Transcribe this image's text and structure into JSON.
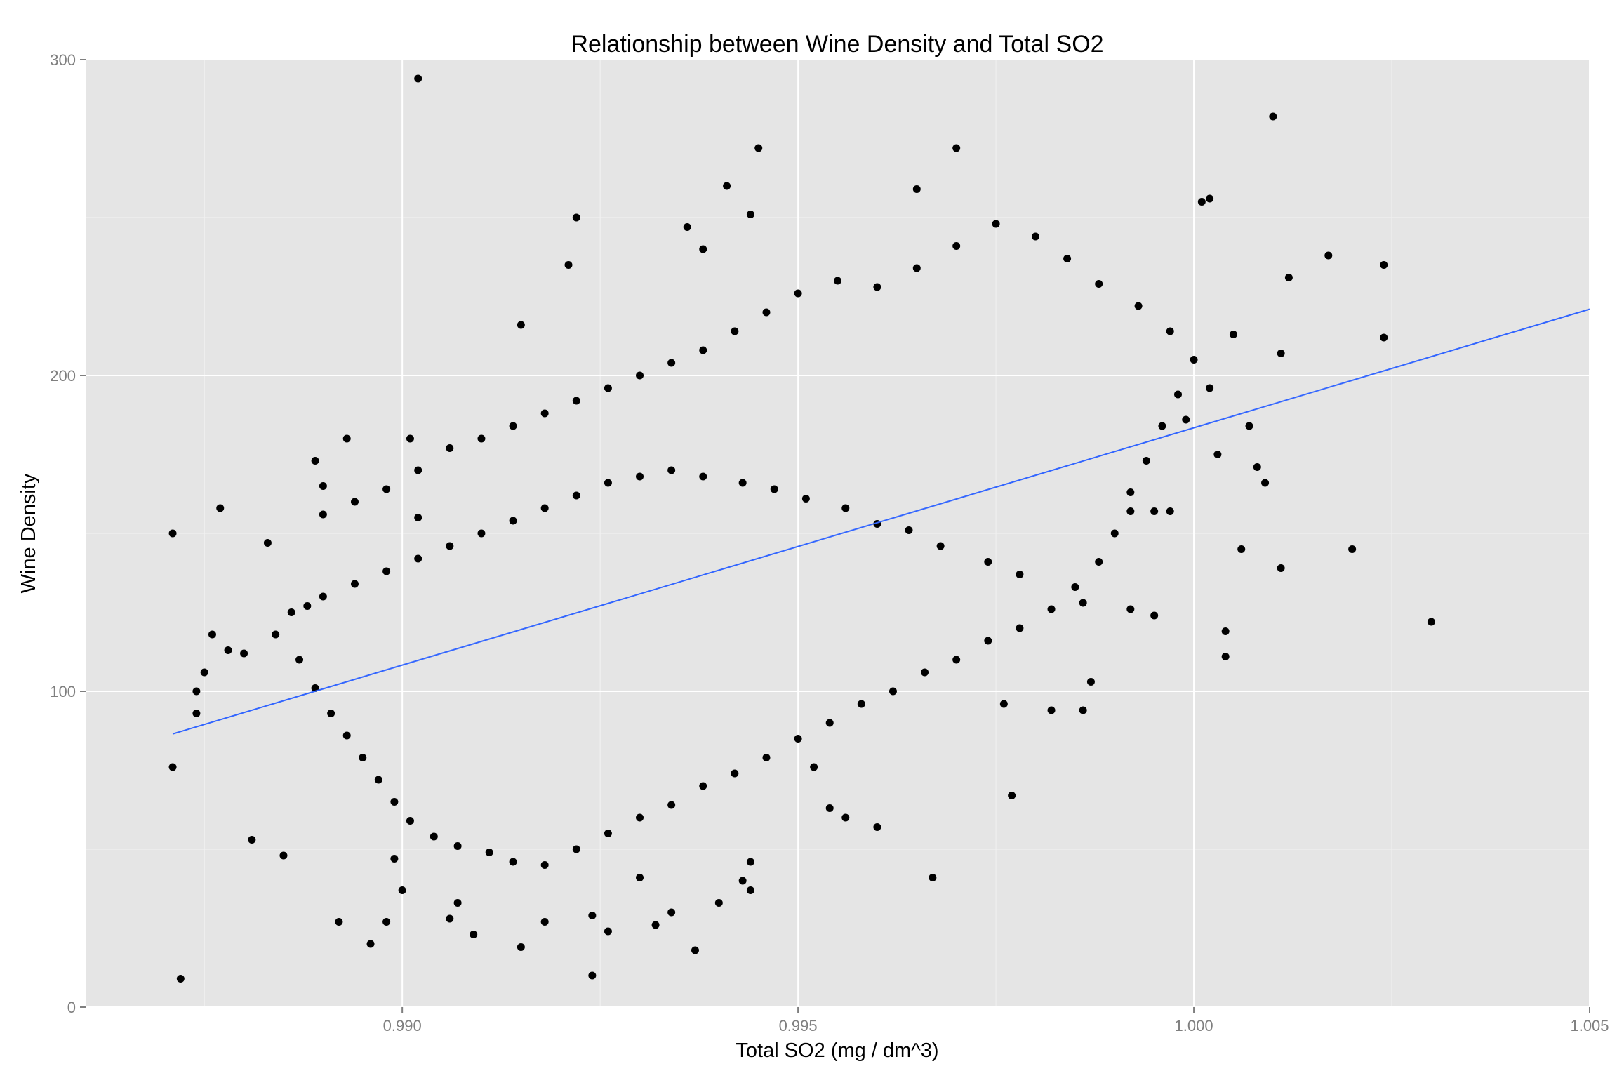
{
  "chart_data": {
    "type": "scatter",
    "title": "Relationship between Wine Density and Total SO2",
    "xlabel": "Total SO2 (mg / dm^3)",
    "ylabel": "Wine Density",
    "xlim": [
      0.986,
      1.005
    ],
    "ylim": [
      0,
      300
    ],
    "x_ticks": [
      0.99,
      0.995,
      1.0,
      1.005
    ],
    "x_tick_labels": [
      "0.990",
      "0.995",
      "1.000",
      "1.005"
    ],
    "y_ticks": [
      0,
      100,
      200,
      300
    ],
    "y_tick_labels": [
      "0",
      "100",
      "200",
      "300"
    ],
    "grid": true,
    "legend": "none",
    "point_color": "#000000",
    "trend_color": "#3366ff",
    "panel_color": "#e5e5e5",
    "trend_line": {
      "x": [
        0.9871,
        1.005
      ],
      "y": [
        86.5,
        221
      ]
    },
    "points": [
      [
        0.9902,
        294
      ],
      [
        1.001,
        282
      ],
      [
        0.9945,
        272
      ],
      [
        0.997,
        272
      ],
      [
        0.9941,
        260
      ],
      [
        0.9965,
        259
      ],
      [
        1.0001,
        255
      ],
      [
        1.0002,
        256
      ],
      [
        0.9922,
        250
      ],
      [
        0.9944,
        251
      ],
      [
        0.9936,
        247
      ],
      [
        0.9938,
        240
      ],
      [
        0.9921,
        235
      ],
      [
        1.0024,
        235
      ],
      [
        1.0017,
        238
      ],
      [
        1.0012,
        231
      ],
      [
        1.0024,
        212
      ],
      [
        1.0011,
        207
      ],
      [
        1.0005,
        213
      ],
      [
        0.9915,
        216
      ],
      [
        0.9871,
        150
      ],
      [
        0.9877,
        158
      ],
      [
        0.9871,
        76
      ],
      [
        0.9872,
        9
      ],
      [
        0.9874,
        93
      ],
      [
        0.9874,
        100
      ],
      [
        0.9875,
        106
      ],
      [
        0.9876,
        118
      ],
      [
        0.9878,
        113
      ],
      [
        0.988,
        112
      ],
      [
        0.9881,
        53
      ],
      [
        0.9883,
        147
      ],
      [
        0.9885,
        48
      ],
      [
        0.9889,
        173
      ],
      [
        0.9888,
        127
      ],
      [
        0.989,
        165
      ],
      [
        0.9892,
        27
      ],
      [
        0.9893,
        180
      ],
      [
        0.9896,
        20
      ],
      [
        0.9898,
        27
      ],
      [
        0.9899,
        47
      ],
      [
        0.99,
        37
      ],
      [
        0.9901,
        180
      ],
      [
        0.9902,
        155
      ],
      [
        0.9906,
        28
      ],
      [
        0.9907,
        33
      ],
      [
        0.9909,
        23
      ],
      [
        0.9915,
        19
      ],
      [
        0.9918,
        27
      ],
      [
        0.9924,
        10
      ],
      [
        0.9924,
        29
      ],
      [
        0.9926,
        24
      ],
      [
        0.993,
        41
      ],
      [
        0.9932,
        26
      ],
      [
        0.9934,
        30
      ],
      [
        0.9937,
        18
      ],
      [
        0.994,
        33
      ],
      [
        0.9943,
        40
      ],
      [
        0.9944,
        37
      ],
      [
        0.9944,
        46
      ],
      [
        0.9952,
        76
      ],
      [
        0.9954,
        63
      ],
      [
        0.9956,
        60
      ],
      [
        0.996,
        57
      ],
      [
        0.9967,
        41
      ],
      [
        0.9977,
        67
      ],
      [
        0.9987,
        103
      ],
      [
        0.9986,
        94
      ],
      [
        0.9982,
        94
      ],
      [
        0.9976,
        96
      ],
      [
        1.0004,
        111
      ],
      [
        1.0004,
        119
      ],
      [
        1.0006,
        145
      ],
      [
        1.0011,
        139
      ],
      [
        1.002,
        145
      ],
      [
        1.003,
        122
      ],
      [
        1.0009,
        166
      ],
      [
        1.0008,
        171
      ],
      [
        1.0003,
        175
      ],
      [
        1.0007,
        184
      ],
      [
        1.0002,
        196
      ],
      [
        0.9999,
        186
      ],
      [
        0.9997,
        157
      ],
      [
        0.9995,
        157
      ],
      [
        0.9992,
        157
      ],
      [
        0.9995,
        124
      ],
      [
        0.9992,
        126
      ],
      [
        0.9986,
        128
      ],
      [
        0.9978,
        137
      ],
      [
        0.9974,
        141
      ],
      [
        0.9968,
        146
      ],
      [
        0.9964,
        151
      ],
      [
        0.996,
        153
      ],
      [
        0.9956,
        158
      ],
      [
        0.9951,
        161
      ],
      [
        0.9947,
        164
      ],
      [
        0.9943,
        166
      ],
      [
        0.9938,
        168
      ],
      [
        0.9934,
        170
      ],
      [
        0.993,
        168
      ],
      [
        0.9926,
        166
      ],
      [
        0.9922,
        162
      ],
      [
        0.9918,
        158
      ],
      [
        0.9914,
        154
      ],
      [
        0.991,
        150
      ],
      [
        0.9906,
        146
      ],
      [
        0.9902,
        142
      ],
      [
        0.9898,
        138
      ],
      [
        0.9894,
        134
      ],
      [
        0.989,
        130
      ],
      [
        0.9886,
        125
      ],
      [
        0.9884,
        118
      ],
      [
        0.9887,
        110
      ],
      [
        0.9889,
        101
      ],
      [
        0.9891,
        93
      ],
      [
        0.9893,
        86
      ],
      [
        0.9895,
        79
      ],
      [
        0.9897,
        72
      ],
      [
        0.9899,
        65
      ],
      [
        0.9901,
        59
      ],
      [
        0.9904,
        54
      ],
      [
        0.9907,
        51
      ],
      [
        0.9911,
        49
      ],
      [
        0.9914,
        46
      ],
      [
        0.9918,
        45
      ],
      [
        0.9922,
        50
      ],
      [
        0.9926,
        55
      ],
      [
        0.993,
        60
      ],
      [
        0.9934,
        64
      ],
      [
        0.9938,
        70
      ],
      [
        0.9942,
        74
      ],
      [
        0.9946,
        79
      ],
      [
        0.995,
        85
      ],
      [
        0.9954,
        90
      ],
      [
        0.9958,
        96
      ],
      [
        0.9962,
        100
      ],
      [
        0.9966,
        106
      ],
      [
        0.997,
        110
      ],
      [
        0.9974,
        116
      ],
      [
        0.9978,
        120
      ],
      [
        0.9982,
        126
      ],
      [
        0.9985,
        133
      ],
      [
        0.9988,
        141
      ],
      [
        0.999,
        150
      ],
      [
        0.9992,
        163
      ],
      [
        0.9994,
        173
      ],
      [
        0.9996,
        184
      ],
      [
        0.9998,
        194
      ],
      [
        1.0,
        205
      ],
      [
        0.9997,
        214
      ],
      [
        0.9993,
        222
      ],
      [
        0.9988,
        229
      ],
      [
        0.9984,
        237
      ],
      [
        0.998,
        244
      ],
      [
        0.9975,
        248
      ],
      [
        0.997,
        241
      ],
      [
        0.9965,
        234
      ],
      [
        0.996,
        228
      ],
      [
        0.9955,
        230
      ],
      [
        0.995,
        226
      ],
      [
        0.9946,
        220
      ],
      [
        0.9942,
        214
      ],
      [
        0.9938,
        208
      ],
      [
        0.9934,
        204
      ],
      [
        0.993,
        200
      ],
      [
        0.9926,
        196
      ],
      [
        0.9922,
        192
      ],
      [
        0.9918,
        188
      ],
      [
        0.9914,
        184
      ],
      [
        0.991,
        180
      ],
      [
        0.9906,
        177
      ],
      [
        0.9902,
        170
      ],
      [
        0.9898,
        164
      ],
      [
        0.9894,
        160
      ],
      [
        0.989,
        156
      ]
    ]
  }
}
